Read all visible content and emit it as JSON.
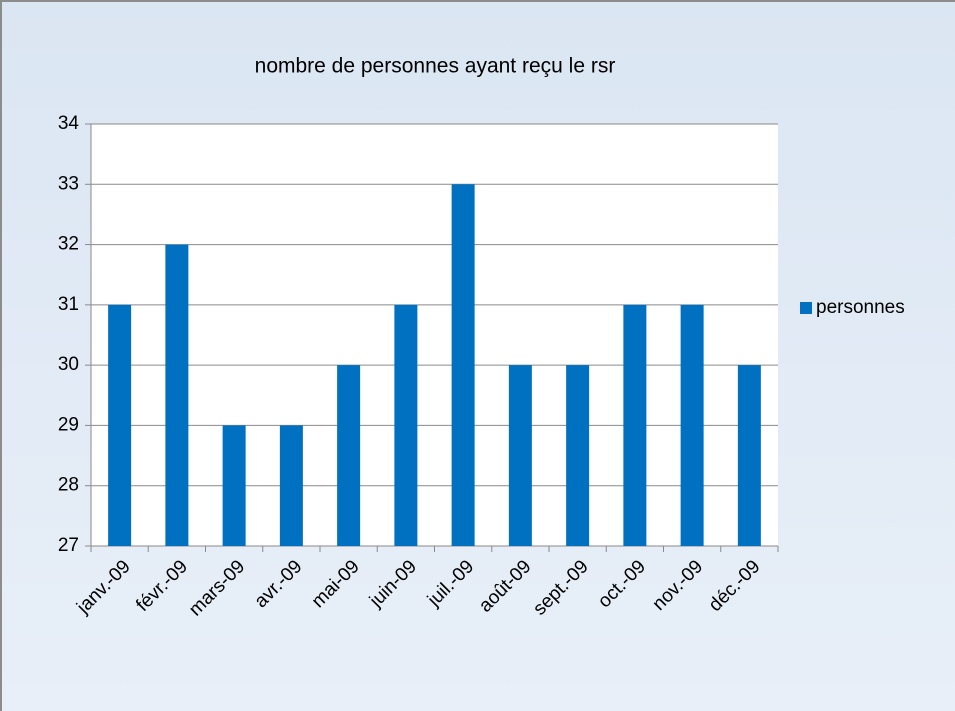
{
  "chart_data": {
    "type": "bar",
    "title": "nombre de personnes ayant reçu le rsr",
    "categories": [
      "janv.-09",
      "févr.-09",
      "mars-09",
      "avr.-09",
      "mai-09",
      "juin-09",
      "juil.-09",
      "août-09",
      "sept.-09",
      "oct.-09",
      "nov.-09",
      "déc.-09"
    ],
    "series": [
      {
        "name": "personnes",
        "color": "#0070c0",
        "values": [
          31,
          32,
          29,
          29,
          30,
          31,
          33,
          30,
          30,
          31,
          31,
          30
        ]
      }
    ],
    "ylim": [
      27,
      34
    ],
    "yticks": [
      27,
      28,
      29,
      30,
      31,
      32,
      33,
      34
    ],
    "grid": true,
    "legend": "right"
  }
}
